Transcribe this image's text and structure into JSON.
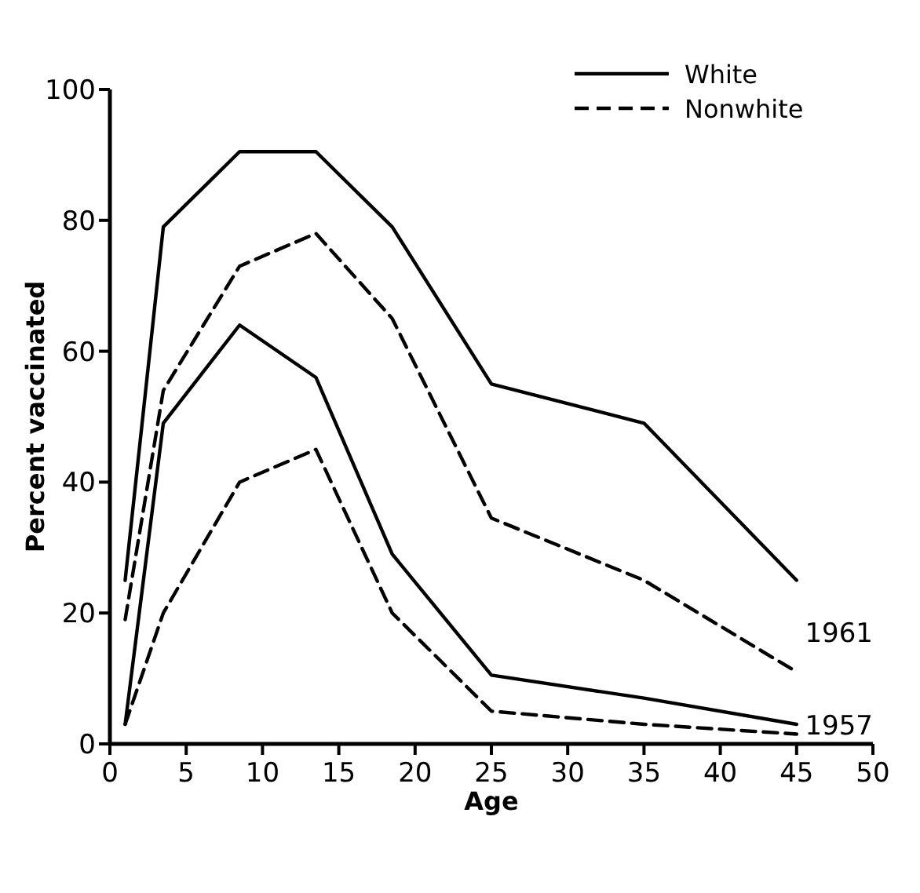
{
  "chart_data": {
    "type": "line",
    "xlabel": "Age",
    "ylabel": "Percent vaccinated",
    "xlim": [
      0,
      50
    ],
    "xticks": [
      0,
      5,
      10,
      15,
      20,
      25,
      30,
      35,
      40,
      45,
      50
    ],
    "ylim": [
      0,
      100
    ],
    "yticks": [
      0,
      20,
      40,
      60,
      80,
      100
    ],
    "x": [
      1,
      3.5,
      8.5,
      13.5,
      18.5,
      25,
      35,
      45
    ],
    "legend": "top right",
    "grid": false,
    "marker": "none",
    "series": [
      {
        "name": "White",
        "color": "#000000",
        "line_style": "solid",
        "values": [
          25,
          79,
          90.5,
          90.5,
          79,
          55,
          49,
          25
        ]
      },
      {
        "name": "Nonwhite",
        "color": "#000000",
        "line_style": "dashed",
        "values": [
          19,
          54,
          73,
          78,
          65,
          34.5,
          25,
          11
        ]
      },
      {
        "color": "#000000",
        "line_style": "solid",
        "values": [
          3,
          49,
          64,
          56,
          29,
          10.5,
          7,
          3
        ]
      },
      {
        "color": "#000000",
        "line_style": "dashed",
        "values": [
          3,
          20,
          40,
          45,
          20,
          5,
          3,
          1.5
        ]
      }
    ],
    "annotations": [
      "1961",
      "1957"
    ]
  }
}
